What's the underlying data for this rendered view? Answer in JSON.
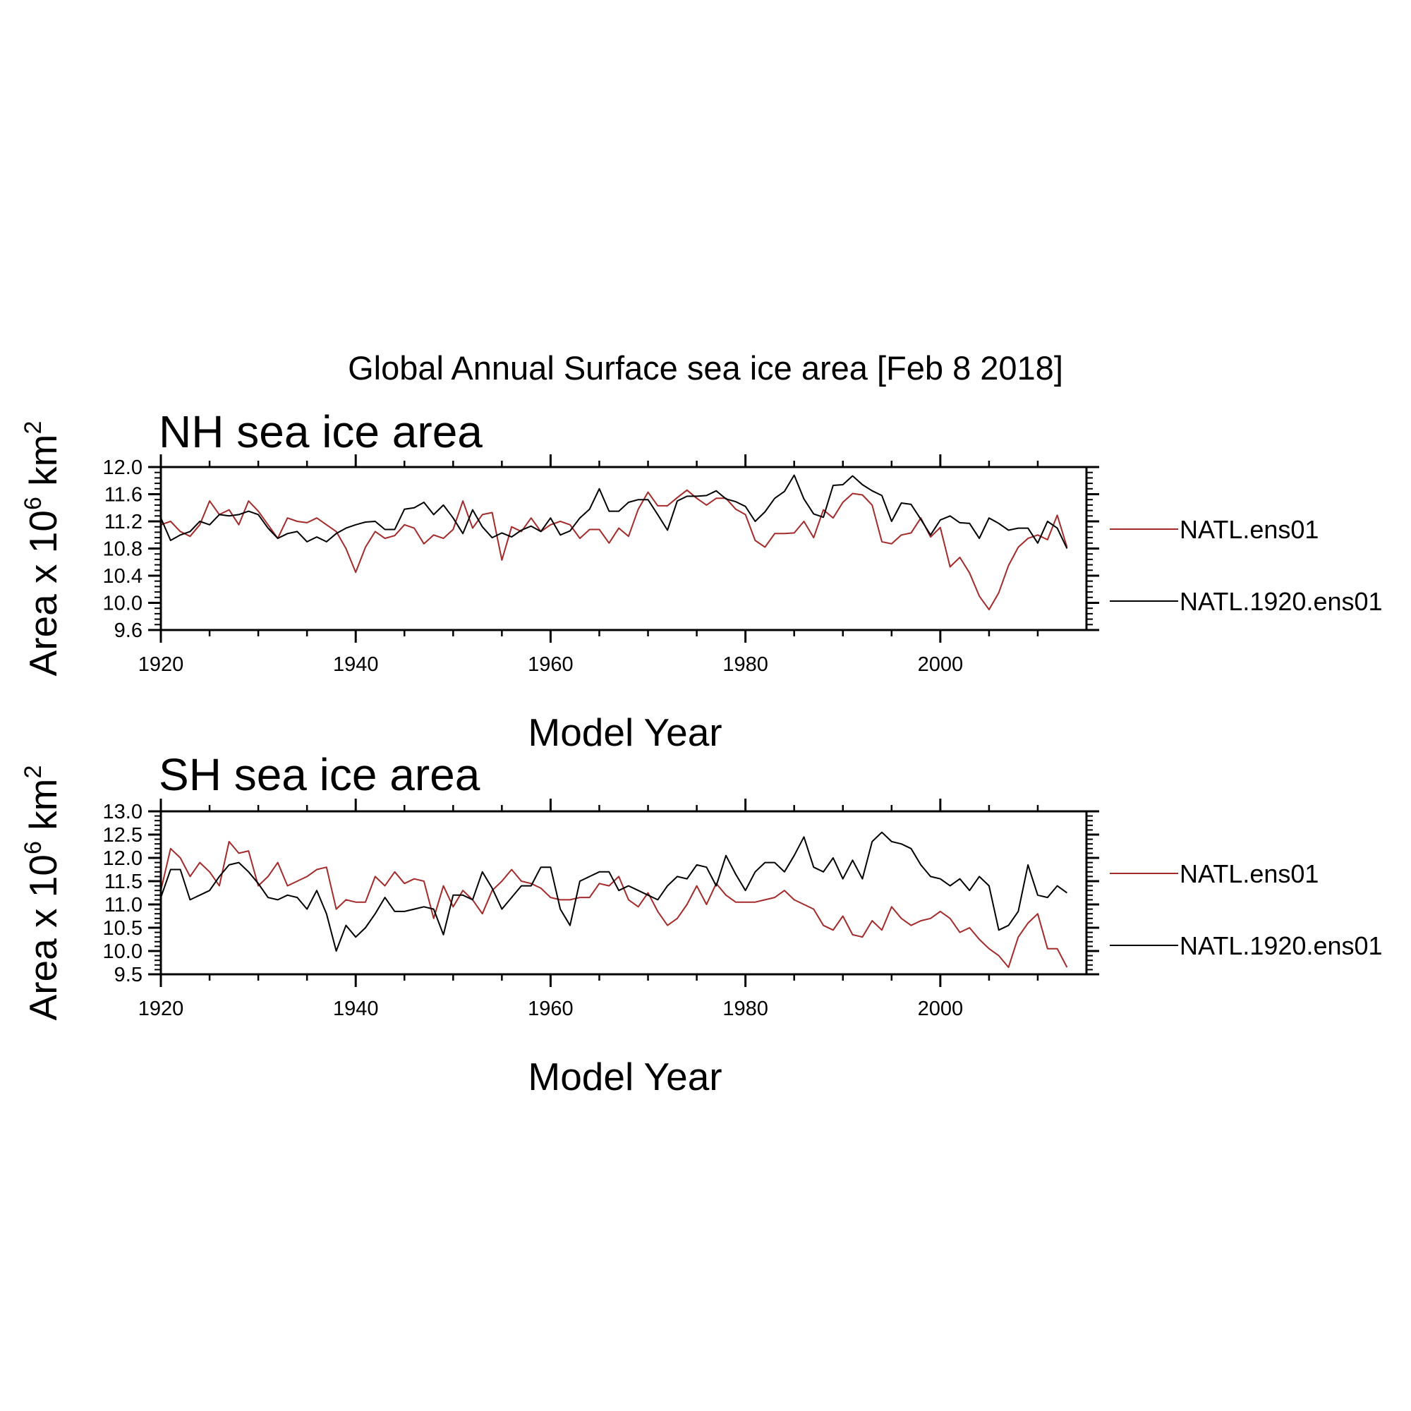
{
  "figure": {
    "title": "Global Annual Surface sea ice area [Feb  8 2018]"
  },
  "chart_data": [
    {
      "type": "line",
      "title": "NH sea ice area",
      "xlabel": "Model Year",
      "ylabel": {
        "base": "Area x 10",
        "exp": "6",
        "unit": " km",
        "unit_exp": "2"
      },
      "xlim": [
        1920,
        2015
      ],
      "ylim": [
        9.6,
        12.0
      ],
      "xticks": [
        1920,
        1940,
        1960,
        1980,
        2000
      ],
      "xtick_labels": [
        "1920",
        "1940",
        "1960",
        "1980",
        "2000"
      ],
      "yticks": [
        9.6,
        10.0,
        10.4,
        10.8,
        11.2,
        11.6,
        12.0
      ],
      "ytick_labels": [
        "9.6",
        "10.0",
        "10.4",
        "10.8",
        "11.2",
        "11.6",
        "12.0"
      ],
      "grid": false,
      "legend": "right",
      "x_start": 1920,
      "series": [
        {
          "name": "NATL.ens01",
          "color": "#a52a2a",
          "values": [
            11.15,
            11.2,
            11.05,
            10.98,
            11.15,
            11.5,
            11.3,
            11.37,
            11.15,
            11.5,
            11.35,
            11.15,
            10.95,
            11.25,
            11.2,
            11.18,
            11.25,
            11.15,
            11.05,
            10.8,
            10.45,
            10.82,
            11.05,
            10.95,
            10.99,
            11.15,
            11.1,
            10.87,
            11.0,
            10.95,
            11.08,
            11.5,
            11.1,
            11.3,
            11.33,
            10.63,
            11.12,
            11.05,
            11.25,
            11.05,
            11.15,
            11.2,
            11.15,
            10.95,
            11.08,
            11.08,
            10.88,
            11.1,
            10.98,
            11.38,
            11.63,
            11.43,
            11.43,
            11.55,
            11.66,
            11.54,
            11.44,
            11.54,
            11.54,
            11.38,
            11.3,
            10.92,
            10.82,
            11.02,
            11.02,
            11.03,
            11.2,
            10.96,
            11.37,
            11.25,
            11.48,
            11.61,
            11.59,
            11.44,
            10.9,
            10.87,
            11.0,
            11.03,
            11.25,
            10.97,
            11.11,
            10.53,
            10.67,
            10.44,
            10.1,
            9.9,
            10.15,
            10.55,
            10.82,
            10.95,
            11.0,
            10.93,
            11.29,
            10.82
          ]
        },
        {
          "name": "NATL.1920.ens01",
          "color": "#000000",
          "values": [
            11.25,
            10.92,
            11.0,
            11.05,
            11.2,
            11.15,
            11.3,
            11.28,
            11.3,
            11.35,
            11.3,
            11.1,
            10.95,
            11.02,
            11.05,
            10.9,
            10.97,
            10.9,
            11.02,
            11.1,
            11.15,
            11.19,
            11.2,
            11.08,
            11.08,
            11.38,
            11.4,
            11.48,
            11.3,
            11.44,
            11.25,
            11.02,
            11.37,
            11.12,
            10.96,
            11.03,
            10.97,
            11.07,
            11.13,
            11.05,
            11.25,
            11.0,
            11.06,
            11.25,
            11.38,
            11.68,
            11.35,
            11.35,
            11.48,
            11.52,
            11.52,
            11.3,
            11.07,
            11.5,
            11.57,
            11.57,
            11.58,
            11.65,
            11.53,
            11.49,
            11.42,
            11.2,
            11.34,
            11.54,
            11.64,
            11.88,
            11.53,
            11.31,
            11.26,
            11.73,
            11.74,
            11.87,
            11.74,
            11.65,
            11.58,
            11.2,
            11.47,
            11.45,
            11.23,
            11.0,
            11.22,
            11.28,
            11.18,
            11.17,
            10.95,
            11.25,
            11.17,
            11.07,
            11.1,
            11.1,
            10.88,
            11.2,
            11.1,
            10.8
          ]
        }
      ]
    },
    {
      "type": "line",
      "title": "SH sea ice area",
      "xlabel": "Model Year",
      "ylabel": {
        "base": "Area x 10",
        "exp": "6",
        "unit": " km",
        "unit_exp": "2"
      },
      "xlim": [
        1920,
        2015
      ],
      "ylim": [
        9.5,
        13.0
      ],
      "xticks": [
        1920,
        1940,
        1960,
        1980,
        2000
      ],
      "xtick_labels": [
        "1920",
        "1940",
        "1960",
        "1980",
        "2000"
      ],
      "yticks": [
        9.5,
        10.0,
        10.5,
        11.0,
        11.5,
        12.0,
        12.5,
        13.0
      ],
      "ytick_labels": [
        "9.5",
        "10.0",
        "10.5",
        "11.0",
        "11.5",
        "12.0",
        "12.5",
        "13.0"
      ],
      "grid": false,
      "legend": "right",
      "x_start": 1920,
      "series": [
        {
          "name": "NATL.ens01",
          "color": "#a52a2a",
          "values": [
            11.3,
            12.2,
            12.0,
            11.6,
            11.9,
            11.7,
            11.4,
            12.35,
            12.1,
            12.15,
            11.4,
            11.6,
            11.9,
            11.4,
            11.5,
            11.6,
            11.75,
            11.8,
            10.9,
            11.1,
            11.05,
            11.05,
            11.6,
            11.4,
            11.7,
            11.45,
            11.55,
            11.5,
            10.7,
            11.4,
            10.95,
            11.3,
            11.1,
            10.8,
            11.3,
            11.5,
            11.75,
            11.5,
            11.45,
            11.35,
            11.15,
            11.1,
            11.1,
            11.15,
            11.15,
            11.45,
            11.4,
            11.6,
            11.1,
            10.95,
            11.25,
            10.85,
            10.55,
            10.7,
            11.0,
            11.4,
            11.0,
            11.45,
            11.2,
            11.05,
            11.05,
            11.05,
            11.1,
            11.15,
            11.3,
            11.1,
            11.0,
            10.9,
            10.55,
            10.45,
            10.75,
            10.35,
            10.3,
            10.65,
            10.45,
            10.95,
            10.7,
            10.55,
            10.65,
            10.7,
            10.85,
            10.7,
            10.4,
            10.5,
            10.25,
            10.05,
            9.9,
            9.65,
            10.3,
            10.6,
            10.8,
            10.05,
            10.05,
            9.65
          ]
        },
        {
          "name": "NATL.1920.ens01",
          "color": "#000000",
          "values": [
            11.15,
            11.75,
            11.75,
            11.1,
            11.2,
            11.3,
            11.6,
            11.85,
            11.9,
            11.7,
            11.45,
            11.15,
            11.1,
            11.2,
            11.15,
            10.9,
            11.3,
            10.8,
            10.0,
            10.55,
            10.3,
            10.5,
            10.8,
            11.15,
            10.85,
            10.85,
            10.9,
            10.95,
            10.9,
            10.35,
            11.2,
            11.2,
            11.1,
            11.7,
            11.35,
            10.9,
            11.15,
            11.4,
            11.4,
            11.8,
            11.8,
            10.9,
            10.55,
            11.5,
            11.6,
            11.7,
            11.7,
            11.3,
            11.4,
            11.3,
            11.2,
            11.1,
            11.4,
            11.6,
            11.55,
            11.85,
            11.8,
            11.4,
            12.05,
            11.65,
            11.3,
            11.7,
            11.9,
            11.9,
            11.7,
            12.05,
            12.45,
            11.8,
            11.7,
            12.0,
            11.55,
            11.95,
            11.55,
            12.35,
            12.55,
            12.35,
            12.3,
            12.2,
            11.85,
            11.6,
            11.55,
            11.4,
            11.55,
            11.3,
            11.6,
            11.4,
            10.45,
            10.55,
            10.85,
            11.85,
            11.2,
            11.15,
            11.4,
            11.25
          ]
        }
      ]
    }
  ]
}
